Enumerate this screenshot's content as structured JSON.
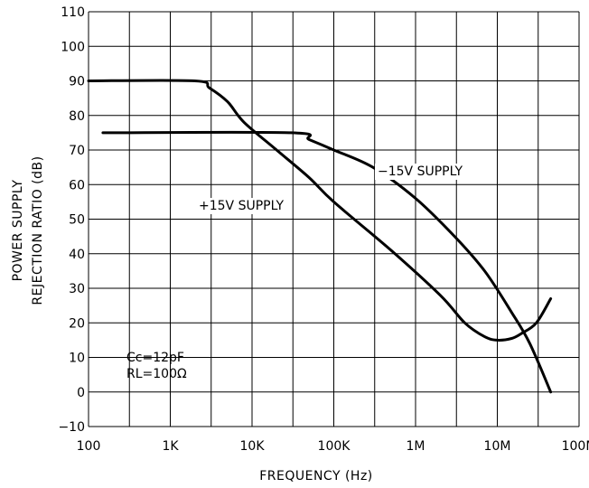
{
  "chart_data": {
    "type": "line",
    "x_scale": "log",
    "xlabel": "FREQUENCY (Hz)",
    "ylabel_line1": "POWER SUPPLY",
    "ylabel_line2": "REJECTION RATIO (dB)",
    "xlim": [
      100,
      100000000
    ],
    "ylim": [
      -10,
      110
    ],
    "grid": true,
    "x_ticks": [
      {
        "value": 100,
        "label": "100"
      },
      {
        "value": 1000,
        "label": "1K"
      },
      {
        "value": 10000,
        "label": "10K"
      },
      {
        "value": 100000,
        "label": "100K"
      },
      {
        "value": 1000000,
        "label": "1M"
      },
      {
        "value": 10000000,
        "label": "10M"
      },
      {
        "value": 100000000,
        "label": "100M"
      }
    ],
    "y_ticks": [
      -10,
      0,
      10,
      20,
      30,
      40,
      50,
      60,
      70,
      80,
      90,
      100,
      110
    ],
    "y_tick_labels": [
      "−10",
      "0",
      "10",
      "20",
      "30",
      "40",
      "50",
      "60",
      "70",
      "80",
      "90",
      "100",
      "110"
    ],
    "series": [
      {
        "name": "+15V SUPPLY",
        "points": [
          [
            100,
            90
          ],
          [
            2000,
            90
          ],
          [
            3000,
            88
          ],
          [
            5000,
            84
          ],
          [
            8000,
            78
          ],
          [
            20000,
            70
          ],
          [
            50000,
            62
          ],
          [
            100000,
            55
          ],
          [
            500000,
            41
          ],
          [
            2000000,
            28
          ],
          [
            4000000,
            20
          ],
          [
            7000000,
            16
          ],
          [
            10000000,
            15
          ],
          [
            15000000,
            15.5
          ],
          [
            20000000,
            17
          ],
          [
            30000000,
            20
          ],
          [
            45000000,
            27
          ]
        ]
      },
      {
        "name": "−15V SUPPLY",
        "points": [
          [
            150,
            75
          ],
          [
            30000,
            75
          ],
          [
            50000,
            73
          ],
          [
            100000,
            70
          ],
          [
            300000,
            65
          ],
          [
            1000000,
            56
          ],
          [
            3000000,
            45
          ],
          [
            7000000,
            35
          ],
          [
            15000000,
            23
          ],
          [
            25000000,
            14
          ],
          [
            45000000,
            0
          ]
        ]
      }
    ],
    "annotations": {
      "plus_label": "+15V SUPPLY",
      "minus_label": "−15V SUPPLY",
      "cc": "Cc=12pF",
      "rl": "RL=100Ω"
    }
  }
}
